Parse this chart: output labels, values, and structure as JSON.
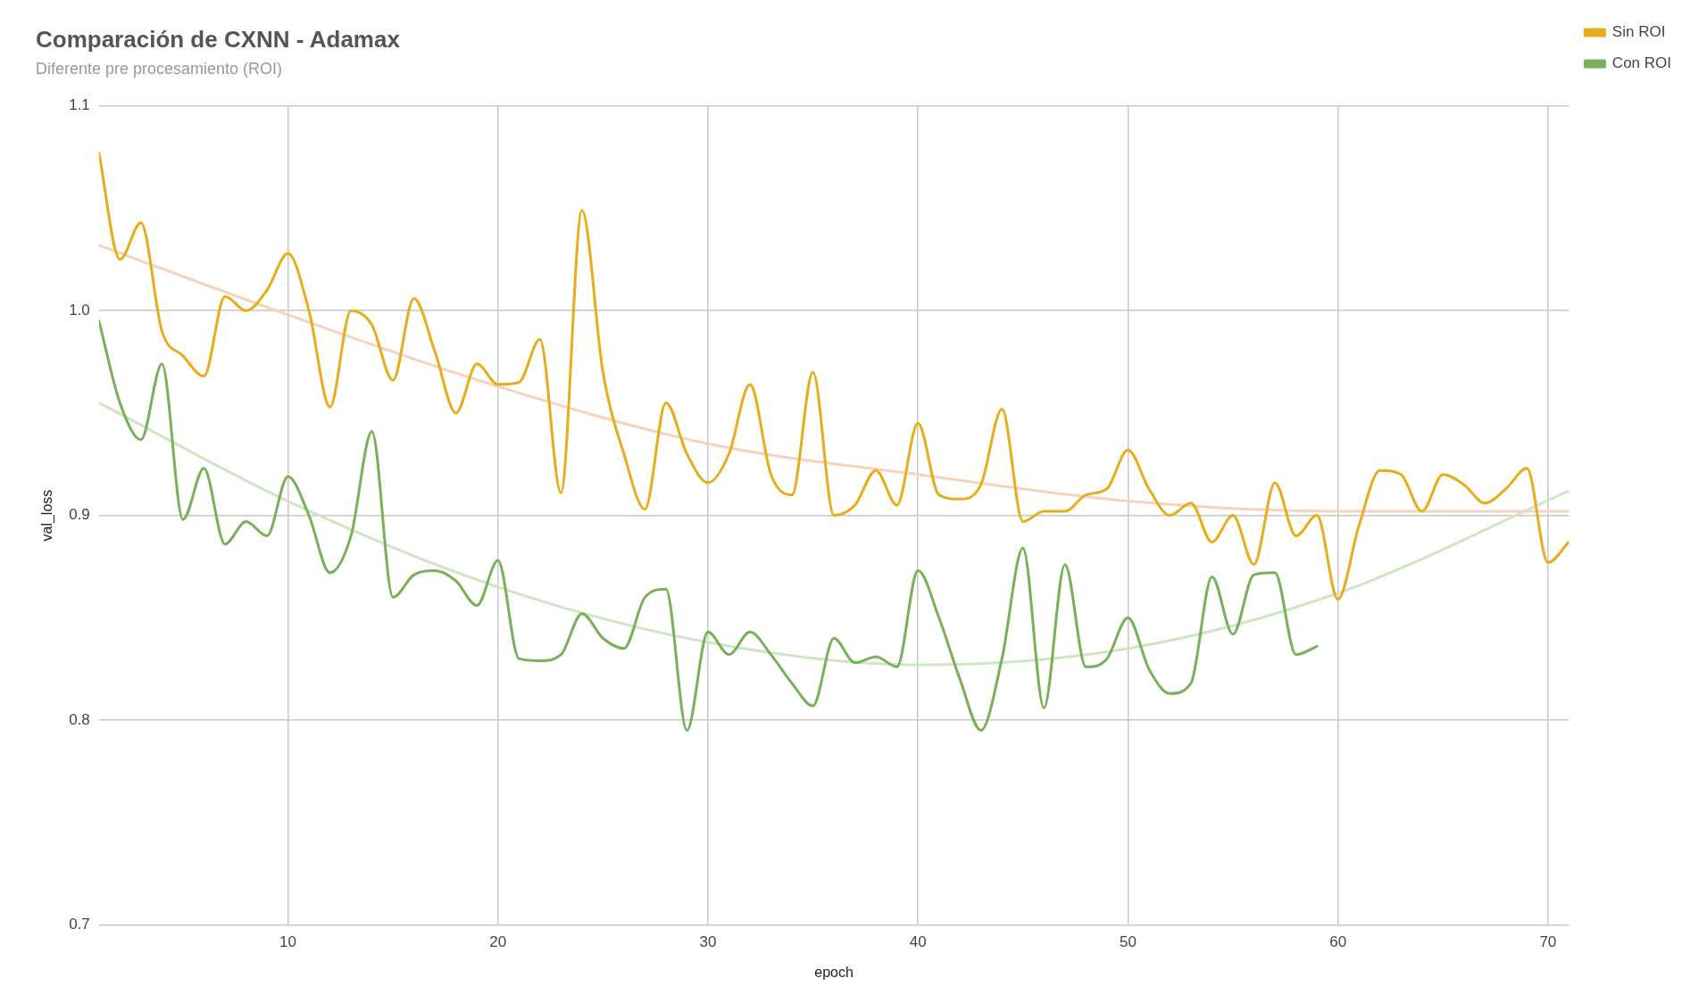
{
  "chart_data": {
    "type": "line",
    "title": "Comparación de CXNN - Adamax",
    "subtitle": "Diferente pre procesamiento (ROI)",
    "xlabel": "epoch",
    "ylabel": "val_loss",
    "x": [
      1,
      2,
      3,
      4,
      5,
      6,
      7,
      8,
      9,
      10,
      11,
      12,
      13,
      14,
      15,
      16,
      17,
      18,
      19,
      20,
      21,
      22,
      23,
      24,
      25,
      26,
      27,
      28,
      29,
      30,
      31,
      32,
      33,
      34,
      35,
      36,
      37,
      38,
      39,
      40,
      41,
      42,
      43,
      44,
      45,
      46,
      47,
      48,
      49,
      50,
      51,
      52,
      53,
      54,
      55,
      56,
      57,
      58,
      59,
      60,
      61,
      62,
      63,
      64,
      65,
      66,
      67,
      68,
      69,
      70,
      71
    ],
    "series": [
      {
        "name": "Sin ROI",
        "color": "#e8ad1b",
        "values": [
          1.077,
          1.025,
          1.043,
          0.99,
          0.978,
          0.968,
          1.007,
          1.0,
          1.01,
          1.028,
          1.0,
          0.953,
          1.0,
          0.993,
          0.966,
          1.006,
          0.98,
          0.95,
          0.974,
          0.964,
          0.965,
          0.986,
          0.911,
          1.049,
          0.97,
          0.93,
          0.903,
          0.955,
          0.93,
          0.916,
          0.93,
          0.964,
          0.92,
          0.91,
          0.97,
          0.9,
          0.905,
          0.922,
          0.905,
          0.945,
          0.91,
          0.908,
          0.915,
          0.952,
          0.897,
          0.902,
          0.902,
          0.91,
          0.913,
          0.932,
          0.913,
          0.9,
          0.906,
          0.887,
          0.9,
          0.876,
          0.916,
          0.89,
          0.9,
          0.859,
          0.895,
          0.922,
          0.92,
          0.902,
          0.92,
          0.915,
          0.906,
          0.913,
          0.923,
          0.877,
          0.887
        ]
      },
      {
        "name": "Con ROI",
        "color": "#78b15a",
        "x": [
          1,
          2,
          3,
          4,
          5,
          6,
          7,
          8,
          9,
          10,
          11,
          12,
          13,
          14,
          15,
          16,
          17,
          18,
          19,
          20,
          21,
          22,
          23,
          24,
          25,
          26,
          27,
          28,
          29,
          30,
          31,
          32,
          33,
          34,
          35,
          36,
          37,
          38,
          39,
          40,
          41,
          42,
          43,
          44,
          45,
          46,
          47,
          48,
          49,
          50,
          51,
          52,
          53,
          54,
          55,
          56,
          57,
          58,
          59
        ],
        "values": [
          0.995,
          0.955,
          0.937,
          0.974,
          0.898,
          0.923,
          0.886,
          0.897,
          0.89,
          0.919,
          0.9,
          0.872,
          0.89,
          0.941,
          0.86,
          0.871,
          0.873,
          0.868,
          0.856,
          0.878,
          0.83,
          0.829,
          0.832,
          0.852,
          0.84,
          0.835,
          0.86,
          0.864,
          0.795,
          0.843,
          0.832,
          0.843,
          0.832,
          0.818,
          0.807,
          0.84,
          0.828,
          0.831,
          0.826,
          0.873,
          0.85,
          0.82,
          0.795,
          0.83,
          0.884,
          0.806,
          0.876,
          0.826,
          0.83,
          0.85,
          0.825,
          0.813,
          0.818,
          0.87,
          0.842,
          0.871,
          0.872,
          0.832,
          0.836
        ]
      },
      {
        "type": "line",
        "color": "#f5d3bd",
        "x": [
          1,
          10,
          20,
          30,
          40,
          50,
          60,
          71
        ],
        "values": [
          1.032,
          0.998,
          0.963,
          0.935,
          0.92,
          0.907,
          0.902,
          0.902
        ]
      },
      {
        "type": "line",
        "color": "#cfe6c4",
        "x": [
          1,
          10,
          20,
          30,
          40,
          50,
          60,
          71
        ],
        "values": [
          0.955,
          0.907,
          0.865,
          0.838,
          0.827,
          0.835,
          0.862,
          0.912
        ]
      }
    ],
    "xlim": [
      1,
      71
    ],
    "xticks": [
      10,
      20,
      30,
      40,
      50,
      60,
      70
    ],
    "ylim": [
      0.7,
      1.1
    ],
    "yticks": [
      0.7,
      0.8,
      0.9,
      {
        "value": 1,
        "label": "1.0"
      },
      1.1
    ],
    "grid": true,
    "legend": "top right",
    "marker": "none",
    "line_style": "solid"
  }
}
